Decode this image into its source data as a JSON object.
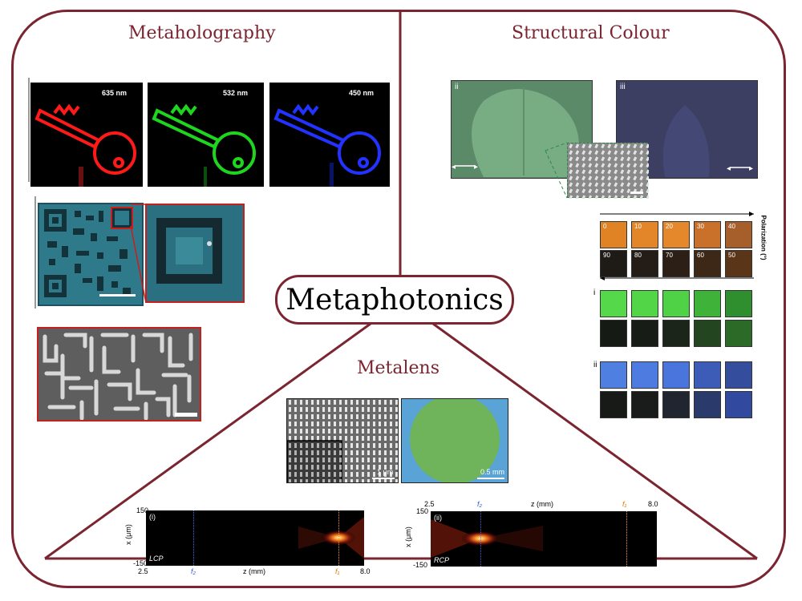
{
  "center": {
    "title": "Metaphotonics"
  },
  "metaholography": {
    "title": "Metaholography",
    "holograms": [
      {
        "wavelength": "635 nm",
        "color": "#ff1a1a"
      },
      {
        "wavelength": "532 nm",
        "color": "#1fd61f"
      },
      {
        "wavelength": "450 nm",
        "color": "#2233ff"
      }
    ]
  },
  "structural_colour": {
    "title": "Structural Colour",
    "photo_labels": [
      "ii",
      "iii"
    ],
    "polarization_label": "Polarization (°)",
    "row_labels": [
      "i",
      "ii"
    ],
    "orange_top": [
      "0",
      "10",
      "20",
      "30",
      "40"
    ],
    "orange_bottom": [
      "90",
      "80",
      "70",
      "60",
      "50"
    ]
  },
  "metalens": {
    "title": "Metalens",
    "sem_scale": "1 μm",
    "lens_scale": "0.5 mm",
    "plot_left": {
      "panel": "(i)",
      "pol": "LCP",
      "ymax": "150",
      "ymin": "-150",
      "ylabel": "x (μm)",
      "xmin": "2.5",
      "xmax": "8.0",
      "xlabel": "z (mm)",
      "f_left": "f₂",
      "f_right": "f₁"
    },
    "plot_right": {
      "panel": "(ii)",
      "pol": "RCP",
      "ymax": "150",
      "ymin": "-150",
      "ylabel": "x (μm)",
      "xmin": "2.5",
      "xmax": "8.0",
      "xlabel": "z (mm)",
      "f_left": "f₂",
      "f_right": "f₁"
    }
  },
  "colors": {
    "frame": "#7a2530",
    "title": "#7a2530"
  }
}
